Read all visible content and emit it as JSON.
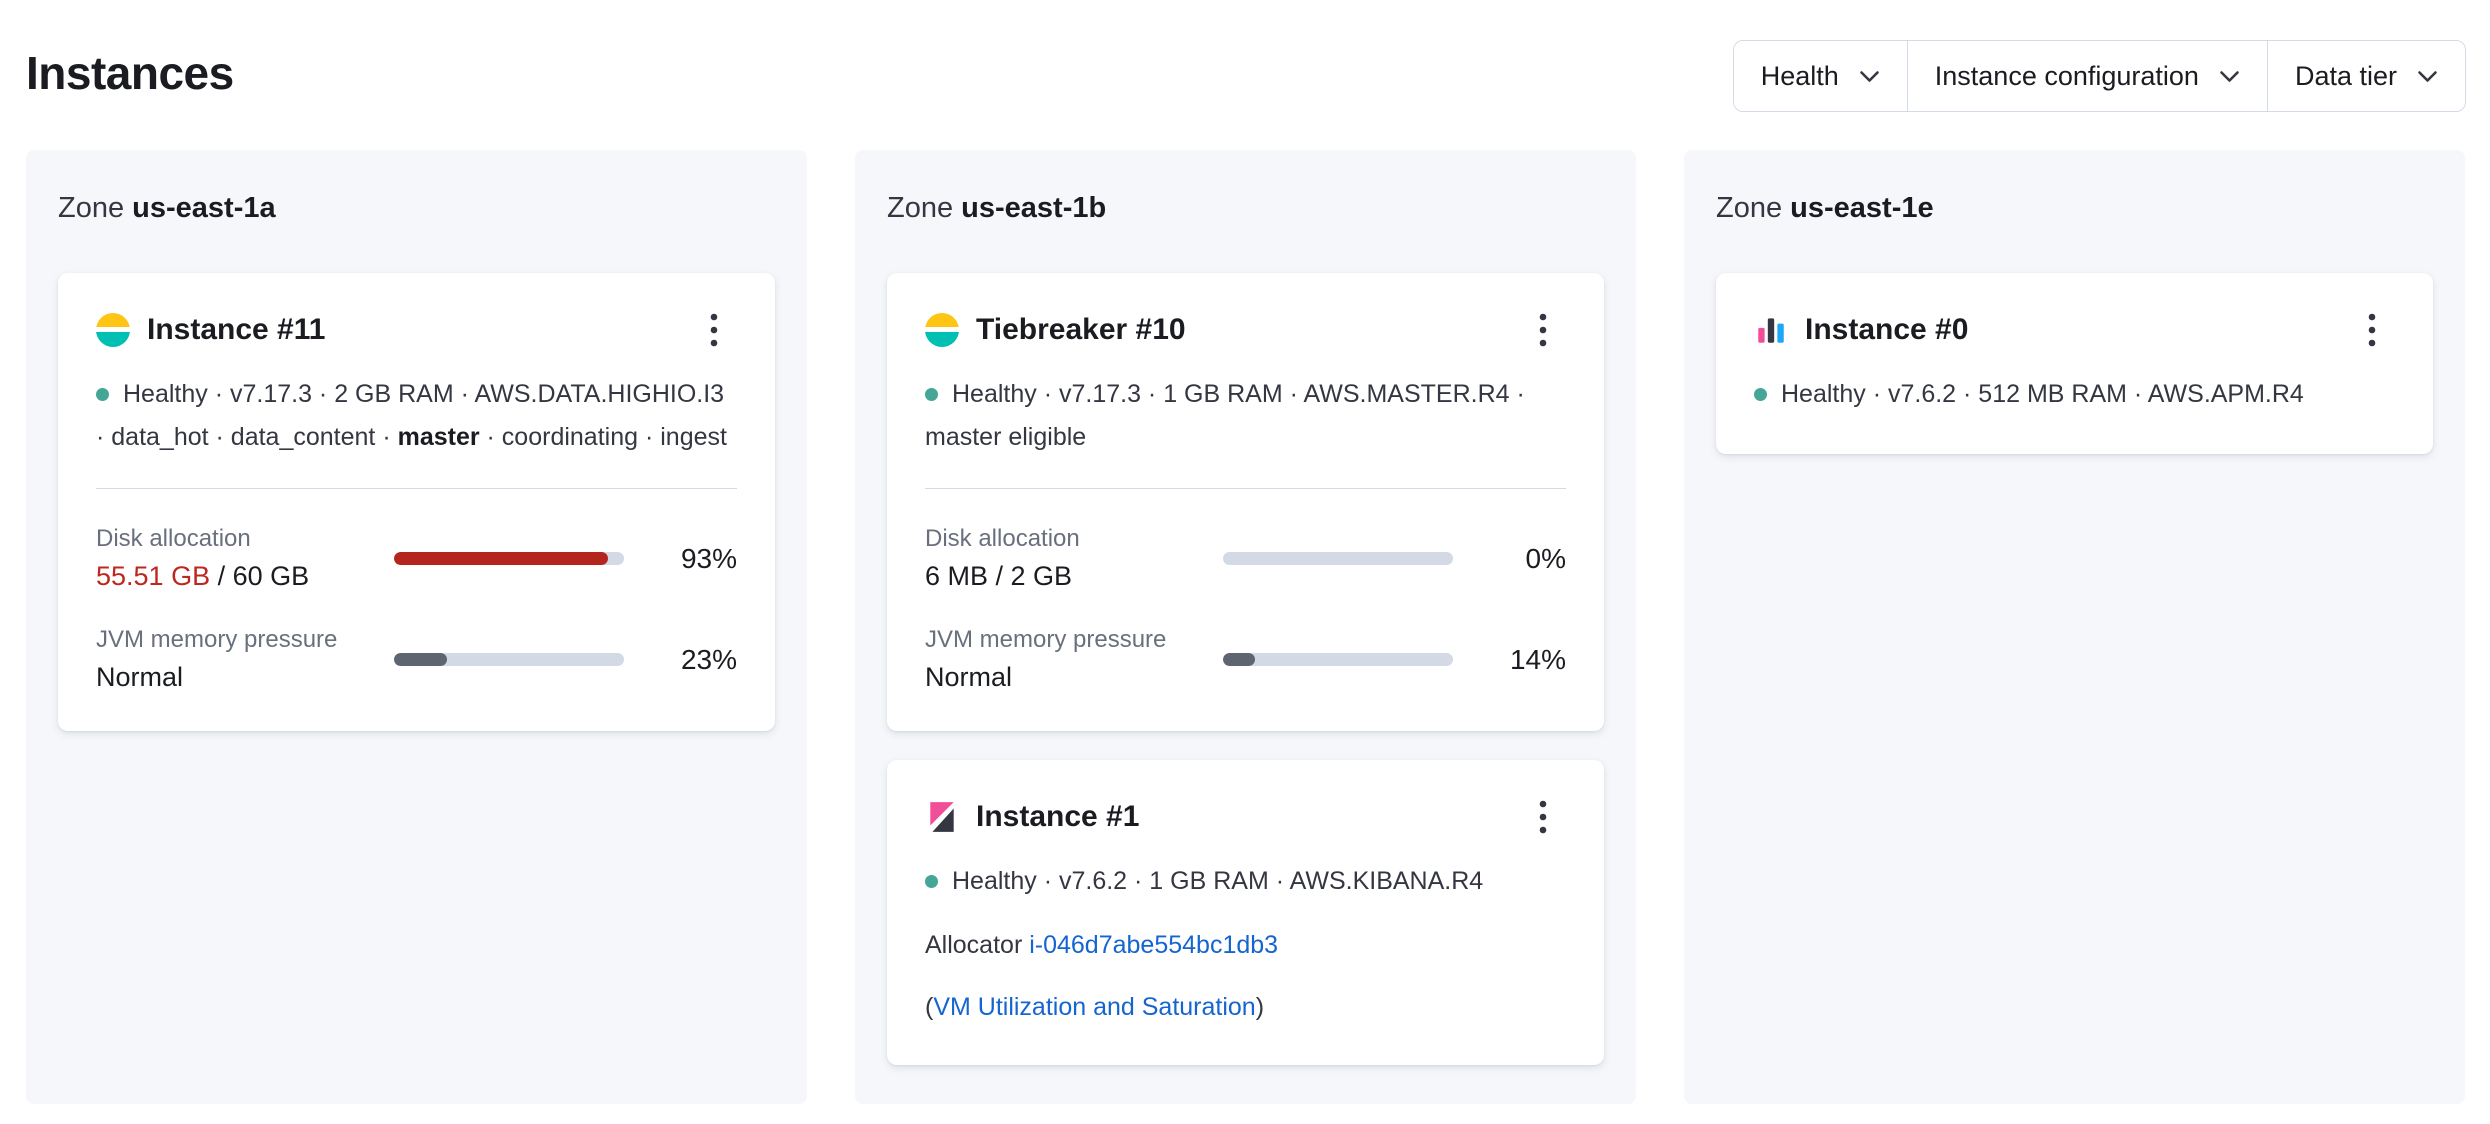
{
  "page": {
    "title": "Instances"
  },
  "filters": {
    "health": "Health",
    "instance_configuration": "Instance configuration",
    "data_tier": "Data tier"
  },
  "colors": {
    "zone_background": "#F5F7FA",
    "healthy_dot": "#45A698",
    "danger_text": "#BD271E",
    "danger_bar": "#B4251D",
    "subdued_bar": "#5E6570",
    "bar_track": "#D3DAE6",
    "link_blue": "#1565D0",
    "elasticsearch_yellow": "#FEC514",
    "elasticsearch_teal": "#00BFB3",
    "kibana_pink": "#F04E98",
    "dark": "#343741"
  },
  "zones": [
    {
      "prefix": "Zone",
      "name": "us-east-1a",
      "cards": [
        {
          "icon": "elasticsearch-icon",
          "title": "Instance #11",
          "status": {
            "before_bold": "Healthy · v7.17.3 · 2 GB RAM · AWS.DATA.HIGHIO.I3 · data_hot · data_content · ",
            "bold": "master",
            "after_bold": " · coordinating · ingest"
          },
          "metrics": [
            {
              "label": "Disk allocation",
              "value_highlight": "55.51 GB",
              "value_rest": " / 60 GB",
              "percent": 93,
              "percent_label": "93%"
            },
            {
              "label": "JVM memory pressure",
              "value": "Normal",
              "percent": 23,
              "percent_label": "23%"
            }
          ]
        }
      ]
    },
    {
      "prefix": "Zone",
      "name": "us-east-1b",
      "cards": [
        {
          "icon": "elasticsearch-icon",
          "title": "Tiebreaker #10",
          "status": {
            "text": "Healthy · v7.17.3 · 1 GB RAM · AWS.MASTER.R4 · master eligible"
          },
          "metrics": [
            {
              "label": "Disk allocation",
              "value": "6 MB / 2 GB",
              "percent": 0,
              "percent_label": "0%"
            },
            {
              "label": "JVM memory pressure",
              "value": "Normal",
              "percent": 14,
              "percent_label": "14%"
            }
          ]
        },
        {
          "icon": "kibana-icon",
          "title": "Instance #1",
          "status": {
            "text": "Healthy · v7.6.2 · 1 GB RAM · AWS.KIBANA.R4"
          },
          "allocator": {
            "label": "Allocator",
            "link": "i-046d7abe554bc1db3"
          },
          "vm_link": {
            "open": "(",
            "text": "VM Utilization and Saturation",
            "close": ")"
          }
        }
      ]
    },
    {
      "prefix": "Zone",
      "name": "us-east-1e",
      "cards": [
        {
          "icon": "apm-icon",
          "title": "Instance #0",
          "status": {
            "text": "Healthy · v7.6.2 · 512 MB RAM · AWS.APM.R4"
          }
        }
      ]
    }
  ]
}
